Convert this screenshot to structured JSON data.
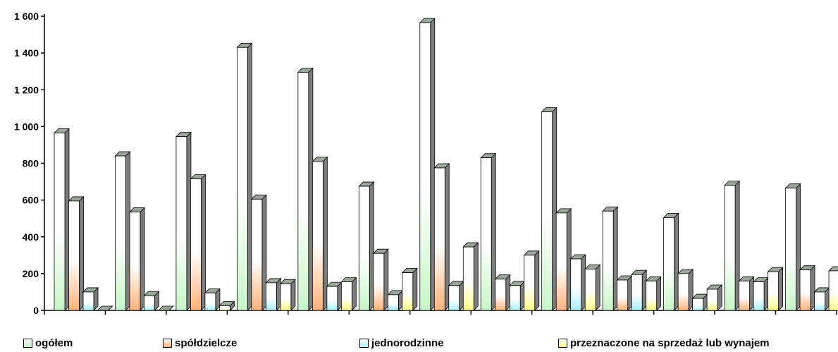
{
  "chart_data": {
    "type": "bar",
    "categories": [
      "",
      "",
      "",
      "",
      "",
      "",
      "",
      "",
      "",
      "",
      "",
      "",
      ""
    ],
    "ylim": [
      0,
      1600
    ],
    "yticks": [
      0,
      200,
      400,
      600,
      800,
      1000,
      1200,
      1400,
      1600
    ],
    "ytick_labels": [
      "0",
      "200",
      "400",
      "600",
      "800",
      "1 000",
      "1 200",
      "1 400",
      "1 600"
    ],
    "grid": false,
    "legend_position": "bottom",
    "series": [
      {
        "name": "ogółem",
        "color": "#c8f5c8",
        "values": [
          965,
          840,
          945,
          1430,
          1295,
          675,
          1565,
          830,
          1080,
          540,
          505,
          680,
          665
        ]
      },
      {
        "name": "spółdzielcze",
        "color": "#ffb27a",
        "values": [
          595,
          535,
          715,
          605,
          810,
          310,
          775,
          170,
          530,
          165,
          200,
          160,
          220
        ]
      },
      {
        "name": "jednorodzinne",
        "color": "#a9f1ff",
        "values": [
          100,
          80,
          95,
          150,
          130,
          85,
          135,
          135,
          280,
          195,
          65,
          155,
          100
        ]
      },
      {
        "name": "przeznaczone na sprzedaż lub wynajem",
        "color": "#ffff8a",
        "values": [
          0,
          0,
          25,
          145,
          155,
          205,
          345,
          300,
          225,
          160,
          115,
          210,
          215
        ]
      }
    ]
  }
}
